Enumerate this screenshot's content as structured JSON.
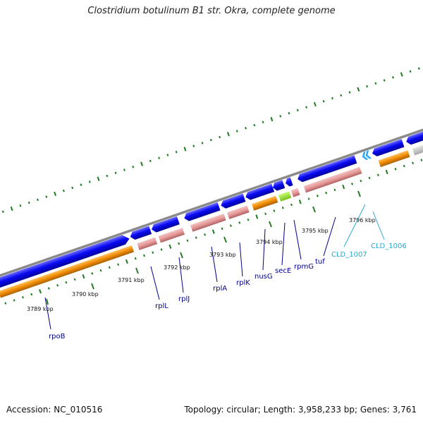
{
  "title": "Clostridium botulinum B1 str. Okra, complete genome",
  "footer": {
    "accession": "Accession: NC_010516",
    "summary": "Topology: circular; Length: 3,958,233 bp; Genes: 3,761"
  },
  "colors": {
    "backbone": "#8c8c8c",
    "cds_forward": "#0a0af5",
    "cds_reverse_upper": "#e69a9a",
    "cds_orange": "#f08c00",
    "cds_green": "#99e632",
    "cds_gray": "#c2c2c2",
    "tick": "#1e7a1e",
    "gene_label": "#00008b",
    "gene_label_alt": "#2aa9cf"
  },
  "scale_labels": [
    "3789 kbp",
    "3790 kbp",
    "3791 kbp",
    "3792 kbp",
    "3793 kbp",
    "3794 kbp",
    "3795 kbp",
    "3796 kbp"
  ],
  "genes": [
    "rpoB",
    "rplL",
    "rplJ",
    "rplA",
    "rplK",
    "nusG",
    "secE",
    "rpmG",
    "tuf",
    "CLD_1007",
    "CLD_1006"
  ]
}
